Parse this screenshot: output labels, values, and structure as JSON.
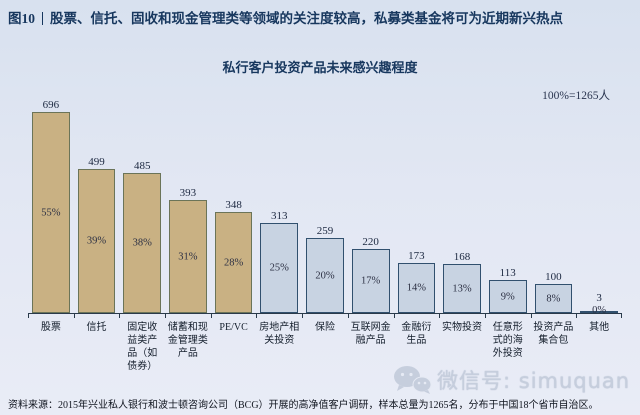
{
  "figure": {
    "tag": "图10",
    "headline": "股票、信托、固收和现金管理类等领域的关注度较高，私募类基金将可为近期新兴热点"
  },
  "chart_data": {
    "type": "bar",
    "title": "私行客户投资产品未来感兴趣程度",
    "annotation": "100%=1265人",
    "categories": [
      "股票",
      "信托",
      "固定收益类产品（如债券）",
      "储蓄和现金管理类产品",
      "PE/VC",
      "房地产相关投资",
      "保险",
      "互联网金融产品",
      "金融衍生品",
      "实物投资",
      "任意形式的海外投资",
      "投资产品集合包",
      "其他"
    ],
    "values": [
      696,
      499,
      485,
      393,
      348,
      313,
      259,
      220,
      173,
      168,
      113,
      100,
      3
    ],
    "pct_labels": [
      "55%",
      "39%",
      "38%",
      "31%",
      "28%",
      "25%",
      "20%",
      "17%",
      "14%",
      "13%",
      "9%",
      "8%",
      "0%"
    ],
    "bar_groups": [
      "tan",
      "tan",
      "tan",
      "tan",
      "tan",
      "blue",
      "blue",
      "blue",
      "blue",
      "blue",
      "blue",
      "blue",
      "blue"
    ],
    "label_wraps": [
      "股票",
      "信托",
      "固定收\n益类产\n品（如\n债券）",
      "储蓄和现\n金管理类\n产品",
      "PE/VC",
      "房地产相\n关投资",
      "保险",
      "互联网金\n融产品",
      "金融衍\n生品",
      "实物投资",
      "任意形\n式的海\n外投资",
      "投资产品\n集合包",
      "其他"
    ],
    "ylim": [
      0,
      696
    ],
    "grid": false,
    "legend": "none",
    "colors": {
      "tan_fill": "#c9b183",
      "tan_border": "#6b7458",
      "blue_fill": "#c8d3e2",
      "blue_border": "#31506e",
      "axis": "#2a3a4a",
      "title_text": "#17375e"
    }
  },
  "watermark": {
    "icon": "wechat-icon",
    "text": "微信号: simuquan"
  },
  "source_note": "资料来源：2015年兴业私人银行和波士顿咨询公司（BCG）开展的高净值客户调研，样本总量为1265名，分布于中国18个省市自治区。"
}
